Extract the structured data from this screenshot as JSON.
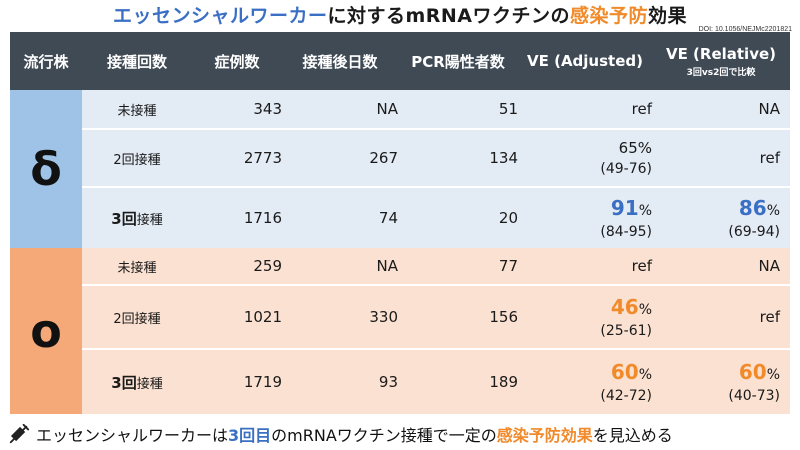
{
  "title": {
    "part1": "エッセンシャルワーカー",
    "part2": "に対するmRNAワクチンの",
    "part3": "感染予防",
    "part4": "効果"
  },
  "doi": "DOI: 10.1056/NEJMc2201821",
  "header": {
    "strain": "流行株",
    "dose": "接種回数",
    "cases": "症例数",
    "days": "接種後日数",
    "pcr": "PCR陽性者数",
    "ve_adjusted": "VE (Adjusted)",
    "ve_relative": "VE (Relative)",
    "ve_relative_sub": "3回vs2回で比較"
  },
  "groups": [
    {
      "strain": "δ",
      "rows": [
        {
          "dose": "未接種",
          "cases": "343",
          "days": "NA",
          "pcr": "51",
          "ve_adj": "ref",
          "ve_rel": "NA"
        },
        {
          "dose": "2回接種",
          "cases": "2773",
          "days": "267",
          "pcr": "134",
          "ve_adj": "65%",
          "ve_adj_ci": "(49-76)",
          "ve_rel": "ref"
        },
        {
          "dose_num": "3回",
          "dose_rest": "接種",
          "cases": "1716",
          "days": "74",
          "pcr": "20",
          "ve_adj": "91",
          "ve_adj_ci": "(84-95)",
          "ve_rel": "86",
          "ve_rel_ci": "(69-94)"
        }
      ]
    },
    {
      "strain": "o",
      "rows": [
        {
          "dose": "未接種",
          "cases": "259",
          "days": "NA",
          "pcr": "77",
          "ve_adj": "ref",
          "ve_rel": "NA"
        },
        {
          "dose": "2回接種",
          "cases": "1021",
          "days": "330",
          "pcr": "156",
          "ve_adj": "46",
          "ve_adj_ci": "(25-61)",
          "ve_rel": "ref"
        },
        {
          "dose_num": "3回",
          "dose_rest": "接種",
          "cases": "1719",
          "days": "93",
          "pcr": "189",
          "ve_adj": "60",
          "ve_adj_ci": "(42-72)",
          "ve_rel": "60",
          "ve_rel_ci": "(40-73)"
        }
      ]
    }
  ],
  "pct_sign": "%",
  "footer": {
    "p1": "エッセンシャルワーカーは",
    "p2": "3回目",
    "p3": "のmRNAワクチン接種で一定の",
    "p4": "感染予防効果",
    "p5": "を見込める"
  },
  "colors": {
    "accent_blue": "#3b6fc4",
    "accent_orange": "#f08a2b",
    "header_bg": "#3f4a55",
    "delta_bg": "#e3ebf5",
    "omicron_bg": "#fbe1d1"
  }
}
